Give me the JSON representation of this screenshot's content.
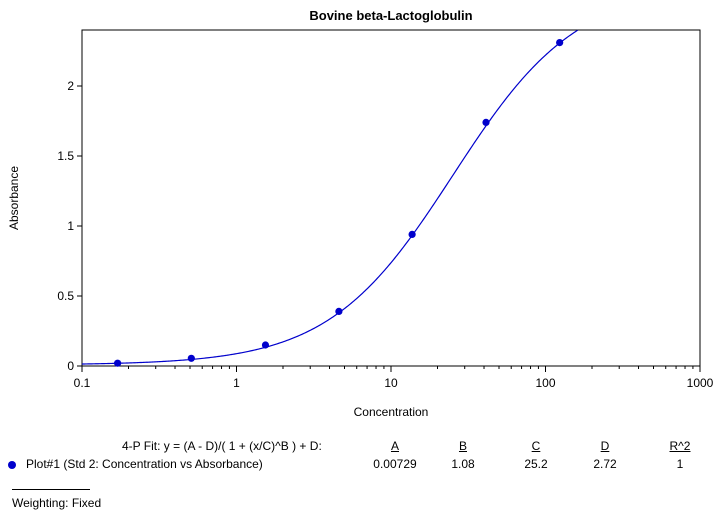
{
  "chart_data": {
    "type": "scatter",
    "title": "Bovine beta-Lactoglobulin",
    "xlabel": "Concentration",
    "ylabel": "Absorbance",
    "xscale": "log",
    "xlim": [
      0.1,
      1000
    ],
    "ylim": [
      0,
      2.4
    ],
    "xticks": [
      "0.1",
      "1",
      "10",
      "100",
      "1000"
    ],
    "yticks": [
      "0",
      "0.5",
      "1",
      "1.5",
      "2"
    ],
    "grid": false,
    "series": [
      {
        "name": "Plot#1 (Std 2: Concentration vs Absorbance)",
        "color": "#0000cc",
        "x": [
          0.17,
          0.51,
          1.54,
          4.6,
          13.7,
          41.2,
          123.5
        ],
        "y": [
          0.02,
          0.055,
          0.15,
          0.39,
          0.94,
          1.74,
          2.31
        ]
      }
    ],
    "fit": {
      "model": "4-P",
      "color": "#0000cc",
      "A": 0.00729,
      "B": 1.08,
      "C": 25.2,
      "D": 2.72
    }
  },
  "fit_table": {
    "equation": "4-P Fit:  y = (A - D)/( 1 + (x/C)^B ) + D:",
    "headers": [
      "A",
      "B",
      "C",
      "D",
      "R^2"
    ],
    "row": {
      "label": "Plot#1 (Std 2: Concentration vs Absorbance)",
      "values": [
        "0.00729",
        "1.08",
        "25.2",
        "2.72",
        "1"
      ]
    }
  },
  "weighting": "Weighting: Fixed"
}
